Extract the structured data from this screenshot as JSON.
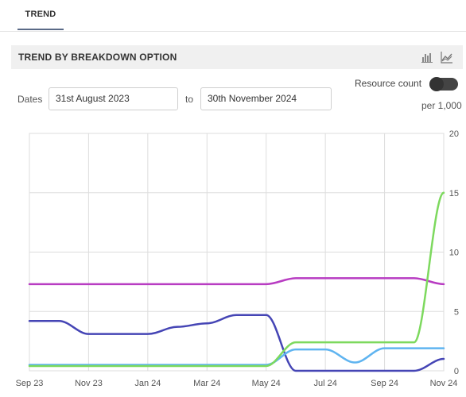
{
  "tabs": [
    {
      "label": "TREND"
    }
  ],
  "section": {
    "title": "TREND BY BREAKDOWN OPTION"
  },
  "icons": {
    "bar_chart": "bar-chart-icon",
    "line_chart": "line-chart-icon"
  },
  "controls": {
    "dates_label": "Dates",
    "from_value": "31st August 2023",
    "to_label": "to",
    "to_value": "30th November 2024",
    "resource_count_label": "Resource count",
    "resource_count_on": false,
    "per_label": "per 1,000"
  },
  "colors": {
    "purple": "#b83cc2",
    "navy": "#4545b5",
    "green": "#7dd95e",
    "blue": "#5fb4f0"
  },
  "chart_data": {
    "type": "line",
    "x": [
      "Sep 23",
      "Oct 23",
      "Nov 23",
      "Dec 23",
      "Jan 24",
      "Feb 24",
      "Mar 24",
      "Apr 24",
      "May 24",
      "Jun 24",
      "Jul 24",
      "Aug 24",
      "Sep 24",
      "Oct 24",
      "Nov 24"
    ],
    "x_tick_labels": [
      "Sep 23",
      "Nov 23",
      "Jan 24",
      "Mar 24",
      "May 24",
      "Jul 24",
      "Sep 24",
      "Nov 24"
    ],
    "y_ticks": [
      "0",
      "5",
      "10",
      "15",
      "20"
    ],
    "ylim": [
      0,
      20
    ],
    "y_axis_position": "right",
    "grid": true,
    "series": [
      {
        "color": "#b83cc2",
        "values": [
          7.3,
          7.3,
          7.3,
          7.3,
          7.3,
          7.3,
          7.3,
          7.3,
          7.3,
          7.8,
          7.8,
          7.8,
          7.8,
          7.8,
          7.3
        ]
      },
      {
        "color": "#4545b5",
        "values": [
          4.2,
          4.2,
          3.1,
          3.1,
          3.1,
          3.7,
          4.0,
          4.7,
          4.7,
          0,
          0,
          0,
          0,
          0,
          1.0
        ]
      },
      {
        "color": "#5fb4f0",
        "values": [
          0.5,
          0.5,
          0.5,
          0.5,
          0.5,
          0.5,
          0.5,
          0.5,
          0.5,
          1.8,
          1.8,
          0.7,
          1.9,
          1.9,
          1.9
        ]
      },
      {
        "color": "#7dd95e",
        "values": [
          0.4,
          0.4,
          0.4,
          0.4,
          0.4,
          0.4,
          0.4,
          0.4,
          0.4,
          2.4,
          2.4,
          2.4,
          2.4,
          2.4,
          15.0
        ]
      }
    ]
  }
}
